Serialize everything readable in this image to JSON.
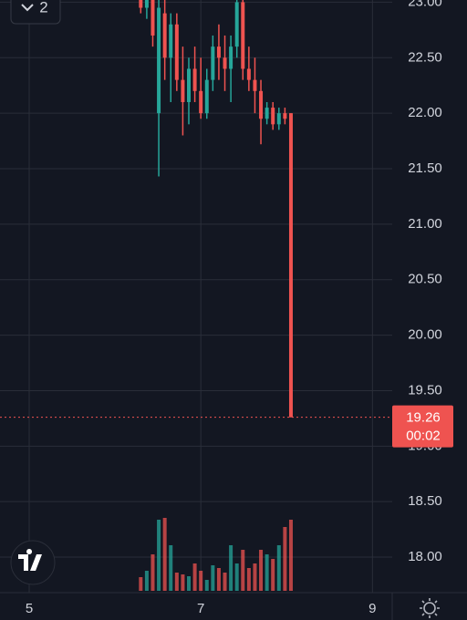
{
  "toolbar": {
    "badge": "2"
  },
  "chart_data": {
    "type": "candlestick",
    "x": [
      6.3,
      6.37,
      6.44,
      6.51,
      6.58,
      6.65,
      6.72,
      6.79,
      6.86,
      6.93,
      7.0,
      7.07,
      7.14,
      7.21,
      7.28,
      7.35,
      7.42,
      7.49,
      7.56,
      7.63,
      7.7,
      7.77,
      7.84,
      7.91,
      7.98,
      8.05
    ],
    "open": [
      23.1,
      22.95,
      23.05,
      22.0,
      22.9,
      22.5,
      22.8,
      22.3,
      22.1,
      22.4,
      22.2,
      22.0,
      22.3,
      22.6,
      22.5,
      22.4,
      22.6,
      23.0,
      22.4,
      22.3,
      22.2,
      21.95,
      22.05,
      21.9,
      22.0,
      22.0
    ],
    "high": [
      23.2,
      23.1,
      23.2,
      23.1,
      23.1,
      22.9,
      22.9,
      22.6,
      22.5,
      22.6,
      22.5,
      22.4,
      22.7,
      22.8,
      22.7,
      22.7,
      23.1,
      23.1,
      22.6,
      22.5,
      22.3,
      22.1,
      22.1,
      22.05,
      22.05,
      22.0
    ],
    "low": [
      22.9,
      22.85,
      22.6,
      21.43,
      22.3,
      22.1,
      22.2,
      21.8,
      21.9,
      22.1,
      21.95,
      21.95,
      22.2,
      22.3,
      22.2,
      22.1,
      22.5,
      22.3,
      22.2,
      22.0,
      21.72,
      21.9,
      21.85,
      21.85,
      21.9,
      19.26
    ],
    "close": [
      22.95,
      23.05,
      22.7,
      22.95,
      22.5,
      22.8,
      22.3,
      22.1,
      22.4,
      22.2,
      22.0,
      22.3,
      22.6,
      22.5,
      22.4,
      22.6,
      23.0,
      22.4,
      22.3,
      22.2,
      21.95,
      22.05,
      21.9,
      22.0,
      21.95,
      19.26
    ],
    "volume": [
      15,
      22,
      40,
      78,
      80,
      50,
      20,
      18,
      16,
      30,
      22,
      12,
      28,
      25,
      20,
      50,
      30,
      45,
      25,
      30,
      45,
      40,
      35,
      50,
      70,
      78
    ],
    "up_color": "#26a69a",
    "down_color": "#ef5350",
    "xlim": [
      4.66,
      9.23
    ],
    "ylim": [
      17.68,
      23.02
    ],
    "xticks": [
      5,
      7,
      9
    ],
    "yticks": [
      {
        "value": 18,
        "label": "18.00"
      },
      {
        "value": 18.5,
        "label": "18.50"
      },
      {
        "value": 19,
        "label": "19.00"
      },
      {
        "value": 19.5,
        "label": "19.50"
      },
      {
        "value": 20,
        "label": "20.00"
      },
      {
        "value": 20.5,
        "label": "20.50"
      },
      {
        "value": 21,
        "label": "21.00"
      },
      {
        "value": 21.5,
        "label": "21.50"
      },
      {
        "value": 22,
        "label": "22.00"
      },
      {
        "value": 22.5,
        "label": "22.50"
      },
      {
        "value": 23,
        "label": "23.00"
      }
    ],
    "grid": true,
    "last_price": 19.26,
    "countdown": "00:02"
  }
}
